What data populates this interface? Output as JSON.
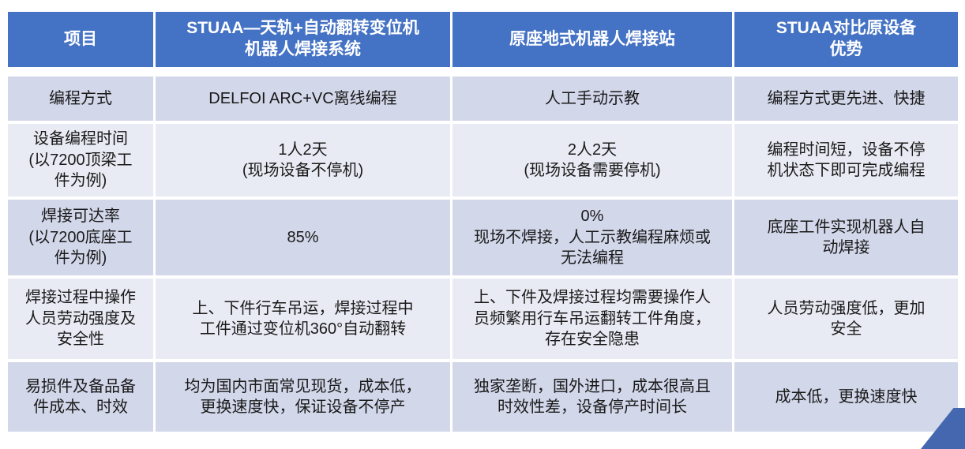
{
  "table": {
    "header": [
      "项目",
      "STUAA—天轨+自动翻转变位机\n机器人焊接系统",
      "原座地式机器人焊接站",
      "STUAA对比原设备\n优势"
    ],
    "rows": [
      {
        "label": "编程方式",
        "stuaa": "DELFOI ARC+VC离线编程",
        "original": "人工手动示教",
        "advantage": "编程方式更先进、快捷"
      },
      {
        "label": "设备编程时间\n(以7200顶梁工\n件为例)",
        "stuaa": "1人2天\n(现场设备不停机)",
        "original": "2人2天\n(现场设备需要停机)",
        "advantage": "编程时间短，设备不停\n机状态下即可完成编程"
      },
      {
        "label": "焊接可达率\n(以7200底座工\n件为例)",
        "stuaa": "85%",
        "original": "0%\n现场不焊接，人工示教编程麻烦或\n无法编程",
        "advantage": "底座工件实现机器人自\n动焊接"
      },
      {
        "label": "焊接过程中操作\n人员劳动强度及\n安全性",
        "stuaa": "上、下件行车吊运，焊接过程中\n工件通过变位机360°自动翻转",
        "original": "上、下件及焊接过程均需要操作人\n员频繁用行车吊运翻转工件角度，\n存在安全隐患",
        "advantage": "人员劳动强度低，更加\n安全"
      },
      {
        "label": "易损件及备品备\n件成本、时效",
        "stuaa": "均为国内市面常见现货，成本低，\n更换速度快，保证设备不停产",
        "original": "独家垄断，国外进口，成本很高且\n时效性差，设备停产时间长",
        "advantage": "成本低，更换速度快"
      }
    ]
  },
  "colors": {
    "header_bg": "#4472C4",
    "header_text": "#FFFFFF",
    "band_dark": "#D2D7EA",
    "band_light": "#E9EBF4",
    "body_text": "#1A1A1A",
    "corner_accent": "#4467AF",
    "background": "#FFFFFF"
  }
}
